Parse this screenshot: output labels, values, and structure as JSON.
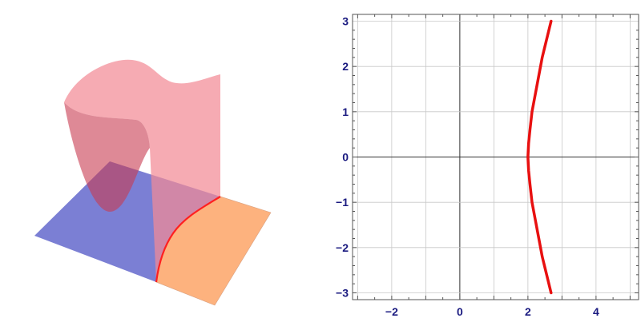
{
  "chart_data": [
    {
      "type": "surface3d",
      "surfaces": [
        {
          "role": "surface",
          "color": "#f08a94"
        },
        {
          "role": "plane-negative-region",
          "color": "#7b7fd4"
        },
        {
          "role": "plane-positive-region",
          "color": "#fdb27e"
        },
        {
          "role": "intersection-curve",
          "color": "#ff2020"
        }
      ],
      "axes": false,
      "box": false
    },
    {
      "type": "line",
      "title": "",
      "xlabel": "",
      "ylabel": "",
      "xlim": [
        -3.15,
        5.25
      ],
      "ylim": [
        -3.15,
        3.15
      ],
      "grid": true,
      "xticks": [
        -2,
        0,
        2,
        4
      ],
      "yticks": [
        -3,
        -2,
        -1,
        0,
        1,
        2,
        3
      ],
      "xtick_labels": [
        "−2",
        "0",
        "2",
        "4"
      ],
      "ytick_labels": [
        "−3",
        "−2",
        "−1",
        "0",
        "1",
        "2",
        "3"
      ],
      "series": [
        {
          "color": "#e81010",
          "x": [
            2.68,
            2.55,
            2.42,
            2.32,
            2.22,
            2.12,
            2.06,
            2.02,
            2.0,
            2.02,
            2.06,
            2.12,
            2.22,
            2.32,
            2.42,
            2.55,
            2.68
          ],
          "y": [
            -3,
            -2.6,
            -2.2,
            -1.8,
            -1.4,
            -1.0,
            -0.6,
            -0.3,
            0,
            0.3,
            0.6,
            1.0,
            1.4,
            1.8,
            2.2,
            2.6,
            3
          ]
        }
      ]
    }
  ]
}
